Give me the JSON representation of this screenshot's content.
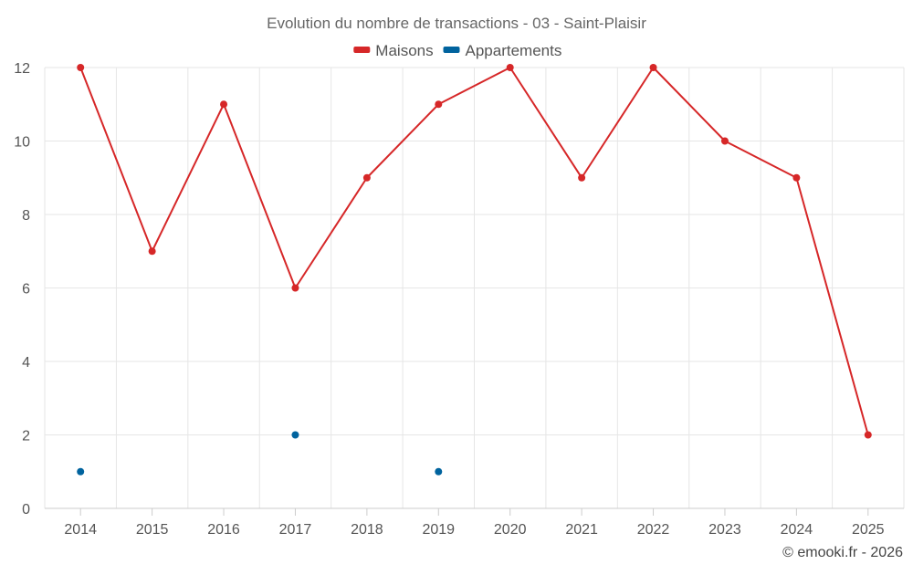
{
  "chart_data": {
    "type": "line",
    "title": "Evolution du nombre de transactions - 03 - Saint-Plaisir",
    "categories": [
      "2014",
      "2015",
      "2016",
      "2017",
      "2018",
      "2019",
      "2020",
      "2021",
      "2022",
      "2023",
      "2024",
      "2025"
    ],
    "series": [
      {
        "name": "Maisons",
        "color": "#d62728",
        "values": [
          12,
          7,
          11,
          6,
          9,
          11,
          12,
          9,
          12,
          10,
          9,
          2
        ]
      },
      {
        "name": "Appartements",
        "color": "#00639e",
        "values": [
          1,
          null,
          null,
          2,
          null,
          1,
          null,
          null,
          null,
          null,
          null,
          null
        ]
      }
    ],
    "yticks": [
      "0",
      "2",
      "4",
      "6",
      "8",
      "10",
      "12"
    ],
    "ylim": [
      0,
      12
    ],
    "grid": true,
    "legend": "top-center",
    "credit": "© emooki.fr - 2026"
  }
}
